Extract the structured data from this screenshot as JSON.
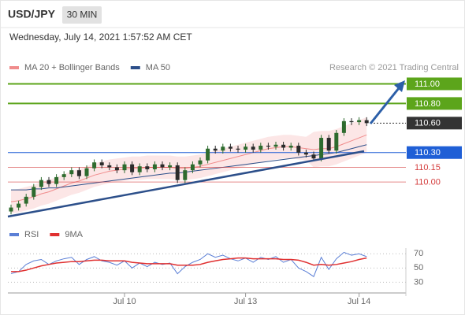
{
  "header": {
    "symbol": "USD/JPY",
    "interval": "30 MIN",
    "timestamp": "Wednesday, July 14, 2021 1:57:52 AM CET",
    "source": "Research © 2021 Trading Central"
  },
  "chart_data": [
    {
      "type": "candlestick",
      "open": [
        109.7,
        109.74,
        109.78,
        109.85,
        109.95,
        110.02,
        109.98,
        110.05,
        110.08,
        110.12,
        110.06,
        110.14,
        110.2,
        110.17,
        110.15,
        110.12,
        110.18,
        110.1,
        110.16,
        110.13,
        110.18,
        110.15,
        110.17,
        110.02,
        110.12,
        110.18,
        110.22,
        110.34,
        110.32,
        110.36,
        110.34,
        110.33,
        110.36,
        110.33,
        110.37,
        110.36,
        110.38,
        110.35,
        110.37,
        110.3,
        110.28,
        110.24,
        110.45,
        110.32,
        110.5,
        110.62,
        110.61,
        110.63
      ],
      "high": [
        109.77,
        109.81,
        109.88,
        109.98,
        110.05,
        110.05,
        110.08,
        110.11,
        110.15,
        110.15,
        110.17,
        110.23,
        110.23,
        110.2,
        110.18,
        110.21,
        110.21,
        110.19,
        110.19,
        110.21,
        110.21,
        110.2,
        110.2,
        110.15,
        110.21,
        110.25,
        110.37,
        110.37,
        110.39,
        110.39,
        110.37,
        110.39,
        110.39,
        110.4,
        110.4,
        110.41,
        110.41,
        110.4,
        110.4,
        110.33,
        110.31,
        110.48,
        110.48,
        110.53,
        110.65,
        110.65,
        110.66,
        110.66
      ],
      "low": [
        109.67,
        109.71,
        109.75,
        109.82,
        109.92,
        109.95,
        109.95,
        110.02,
        110.05,
        110.03,
        110.03,
        110.11,
        110.14,
        110.12,
        110.09,
        110.09,
        110.07,
        110.07,
        110.1,
        110.1,
        110.12,
        110.12,
        109.99,
        109.99,
        110.09,
        110.15,
        110.19,
        110.29,
        110.29,
        110.31,
        110.3,
        110.3,
        110.3,
        110.3,
        110.33,
        110.33,
        110.32,
        110.32,
        110.27,
        110.25,
        110.21,
        110.21,
        110.29,
        110.29,
        110.47,
        110.58,
        110.58,
        110.57
      ],
      "close": [
        109.74,
        109.78,
        109.85,
        109.95,
        110.02,
        109.98,
        110.05,
        110.08,
        110.12,
        110.06,
        110.14,
        110.2,
        110.17,
        110.15,
        110.12,
        110.18,
        110.1,
        110.16,
        110.13,
        110.18,
        110.15,
        110.17,
        110.02,
        110.12,
        110.18,
        110.22,
        110.34,
        110.32,
        110.36,
        110.34,
        110.33,
        110.36,
        110.33,
        110.37,
        110.36,
        110.38,
        110.35,
        110.37,
        110.3,
        110.28,
        110.24,
        110.45,
        110.32,
        110.5,
        110.62,
        110.61,
        110.63,
        110.6
      ],
      "up_color": "#2e6b2e",
      "down_color": "#2b2b2b",
      "series": [
        {
          "name": "MA 20 + Bollinger Bands",
          "color": "#f08c8c",
          "values": [
            109.8,
            109.81,
            109.83,
            109.85,
            109.88,
            109.9,
            109.93,
            109.96,
            109.99,
            110.01,
            110.04,
            110.07,
            110.09,
            110.11,
            110.12,
            110.13,
            110.14,
            110.14,
            110.15,
            110.15,
            110.15,
            110.15,
            110.14,
            110.14,
            110.15,
            110.16,
            110.18,
            110.2,
            110.22,
            110.24,
            110.26,
            110.28,
            110.3,
            110.32,
            110.34,
            110.35,
            110.36,
            110.36,
            110.35,
            110.34,
            110.33,
            110.34,
            110.34,
            110.36,
            110.39,
            110.42,
            110.45,
            110.48
          ],
          "upper": [
            109.92,
            109.93,
            109.95,
            109.97,
            110.0,
            110.02,
            110.05,
            110.08,
            110.11,
            110.13,
            110.16,
            110.19,
            110.21,
            110.23,
            110.24,
            110.25,
            110.26,
            110.26,
            110.27,
            110.27,
            110.27,
            110.27,
            110.26,
            110.26,
            110.27,
            110.28,
            110.3,
            110.32,
            110.34,
            110.36,
            110.38,
            110.4,
            110.42,
            110.44,
            110.46,
            110.47,
            110.48,
            110.48,
            110.47,
            110.46,
            110.51,
            110.52,
            110.52,
            110.54,
            110.57,
            110.6,
            110.63,
            110.66
          ],
          "lower": [
            109.68,
            109.69,
            109.71,
            109.73,
            109.76,
            109.78,
            109.81,
            109.84,
            109.87,
            109.89,
            109.92,
            109.95,
            109.97,
            109.99,
            110.0,
            110.01,
            110.02,
            110.02,
            110.03,
            110.03,
            110.03,
            110.03,
            110.02,
            110.02,
            110.03,
            110.04,
            110.06,
            110.08,
            110.1,
            110.12,
            110.14,
            110.16,
            110.18,
            110.2,
            110.22,
            110.23,
            110.24,
            110.24,
            110.23,
            110.22,
            110.15,
            110.16,
            110.16,
            110.18,
            110.21,
            110.24,
            110.27,
            110.3
          ]
        },
        {
          "name": "MA 50",
          "color": "#2c4f8a",
          "values": [
            109.92,
            109.92,
            109.92,
            109.93,
            109.93,
            109.94,
            109.94,
            109.95,
            109.96,
            109.97,
            109.98,
            109.99,
            110.0,
            110.01,
            110.02,
            110.03,
            110.04,
            110.05,
            110.06,
            110.07,
            110.08,
            110.09,
            110.09,
            110.1,
            110.11,
            110.12,
            110.13,
            110.14,
            110.15,
            110.16,
            110.17,
            110.18,
            110.19,
            110.2,
            110.21,
            110.22,
            110.23,
            110.24,
            110.25,
            110.26,
            110.27,
            110.28,
            110.29,
            110.3,
            110.32,
            110.34,
            110.36,
            110.38
          ]
        }
      ],
      "ylim": [
        109.56,
        111.1
      ],
      "levels": [
        {
          "value": 111,
          "label": "111.00",
          "color": "#5ca51b",
          "line": "solid",
          "label_style": "box"
        },
        {
          "value": 110.8,
          "label": "110.80",
          "color": "#5ca51b",
          "line": "solid",
          "label_style": "box"
        },
        {
          "value": 110.6,
          "label": "110.60",
          "color": "#333333",
          "line": "dotted",
          "label_style": "box"
        },
        {
          "value": 110.3,
          "label": "110.30",
          "color": "#1f5fd6",
          "line": "solid",
          "label_style": "box"
        },
        {
          "value": 110.15,
          "label": "110.15",
          "color": "#d43c3c",
          "line": "solid",
          "label_style": "text"
        },
        {
          "value": 110,
          "label": "110.00",
          "color": "#d43c3c",
          "line": "solid",
          "label_style": "text"
        }
      ]
    },
    {
      "type": "line",
      "categories": [
        null,
        null,
        null,
        null,
        null,
        null,
        null,
        null,
        null,
        null,
        null,
        null,
        null,
        null,
        null,
        "Jul 10",
        null,
        null,
        null,
        null,
        null,
        null,
        null,
        null,
        null,
        null,
        null,
        null,
        null,
        null,
        null,
        "Jul 13",
        null,
        null,
        null,
        null,
        null,
        null,
        null,
        null,
        null,
        null,
        null,
        null,
        null,
        null,
        "Jul 14",
        null
      ],
      "series": [
        {
          "name": "RSI",
          "color": "#5b7fd6",
          "values": [
            42,
            45,
            55,
            60,
            62,
            55,
            60,
            63,
            65,
            55,
            62,
            66,
            60,
            58,
            54,
            60,
            50,
            57,
            52,
            58,
            55,
            57,
            42,
            52,
            58,
            62,
            70,
            65,
            68,
            63,
            60,
            64,
            58,
            65,
            62,
            66,
            58,
            62,
            50,
            45,
            38,
            65,
            48,
            63,
            72,
            68,
            70,
            66
          ]
        },
        {
          "name": "9MA",
          "color": "#e03030",
          "values": [
            45,
            45,
            47,
            50,
            53,
            55,
            57,
            58,
            59,
            59,
            60,
            61,
            61,
            60,
            60,
            60,
            58,
            57,
            56,
            56,
            56,
            56,
            54,
            54,
            54,
            55,
            58,
            60,
            62,
            63,
            64,
            64,
            63,
            63,
            63,
            63,
            62,
            62,
            61,
            58,
            54,
            55,
            54,
            55,
            57,
            59,
            62,
            64
          ]
        }
      ],
      "ylim": [
        15,
        78
      ],
      "yticks": [
        30,
        50,
        70
      ],
      "grid": "dotted"
    }
  ]
}
